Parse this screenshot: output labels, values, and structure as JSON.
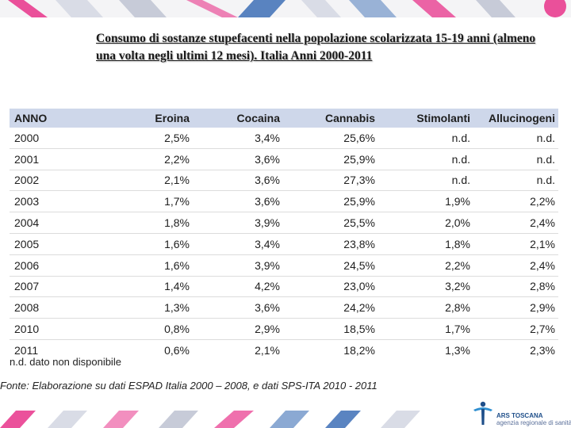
{
  "title": "Consumo di sostanze stupefacenti nella popolazione scolarizzata 15-19 anni (almeno una volta negli ultimi 12 mesi). Italia Anni 2000-2011",
  "table": {
    "headers": [
      "ANNO",
      "Eroina",
      "Cocaina",
      "Cannabis",
      "Stimolanti",
      "Allucinogeni"
    ],
    "rows": [
      [
        "2000",
        "2,5%",
        "3,4%",
        "25,6%",
        "n.d.",
        "n.d."
      ],
      [
        "2001",
        "2,2%",
        "3,6%",
        "25,9%",
        "n.d.",
        "n.d."
      ],
      [
        "2002",
        "2,1%",
        "3,6%",
        "27,3%",
        "n.d.",
        "n.d."
      ],
      [
        "2003",
        "1,7%",
        "3,6%",
        "25,9%",
        "1,9%",
        "2,2%"
      ],
      [
        "2004",
        "1,8%",
        "3,9%",
        "25,5%",
        "2,0%",
        "2,4%"
      ],
      [
        "2005",
        "1,6%",
        "3,4%",
        "23,8%",
        "1,8%",
        "2,1%"
      ],
      [
        "2006",
        "1,6%",
        "3,9%",
        "24,5%",
        "2,2%",
        "2,4%"
      ],
      [
        "2007",
        "1,4%",
        "4,2%",
        "23,0%",
        "3,2%",
        "2,8%"
      ],
      [
        "2008",
        "1,3%",
        "3,6%",
        "24,2%",
        "2,8%",
        "2,9%"
      ],
      [
        "2010",
        "0,8%",
        "2,9%",
        "18,5%",
        "1,7%",
        "2,7%"
      ],
      [
        "2011",
        "0,6%",
        "2,1%",
        "18,2%",
        "1,3%",
        "2,3%"
      ]
    ]
  },
  "note": "n.d. dato non disponibile",
  "source": "Fonte: Elaborazione su dati ESPAD Italia 2000 – 2008, e dati SPS-ITA 2010 - 2011",
  "logo": {
    "brand": "ARS TOSCANA",
    "subtitle": "agenzia regionale di sanità",
    "icon": "person-figure-icon"
  },
  "colors": {
    "header_bg": "#ced7ea",
    "band_pink": "#e8338a",
    "band_blue": "#3d6fb6",
    "logo_blue": "#1f4f8a"
  }
}
